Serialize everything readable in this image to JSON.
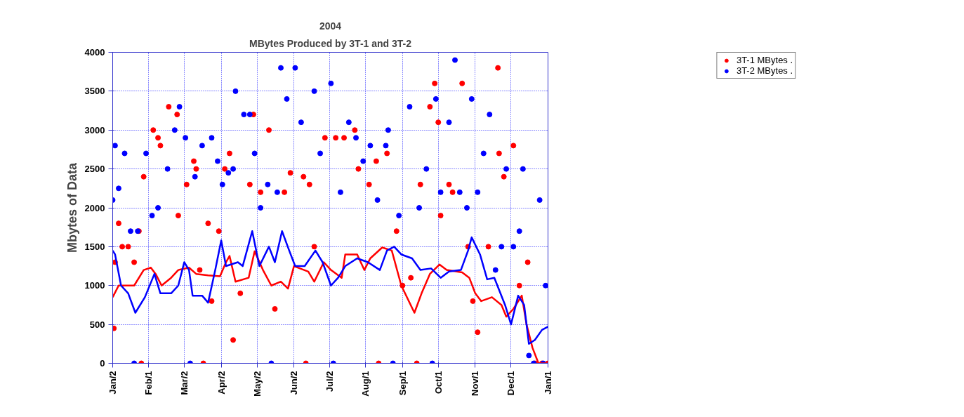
{
  "chart_data": {
    "type": "scatter",
    "title": "2004",
    "subtitle": "MBytes Produced by 3T-1 and 3T-2",
    "ylabel": "Mbytes of Data",
    "xlim": [
      "2004-01-02",
      "2005-01-01"
    ],
    "xticks": [
      {
        "value": "2004-01-02",
        "label": "Jan/2"
      },
      {
        "value": "2004-02-01",
        "label": "Feb/1"
      },
      {
        "value": "2004-03-02",
        "label": "Mar/2"
      },
      {
        "value": "2004-04-02",
        "label": "Apr/2"
      },
      {
        "value": "2004-05-02",
        "label": "May/2"
      },
      {
        "value": "2004-06-02",
        "label": "Jun/2"
      },
      {
        "value": "2004-07-02",
        "label": "Jul/2"
      },
      {
        "value": "2004-08-01",
        "label": "Aug/1"
      },
      {
        "value": "2004-09-01",
        "label": "Sep/1"
      },
      {
        "value": "2004-10-01",
        "label": "Oct/1"
      },
      {
        "value": "2004-11-01",
        "label": "Nov/1"
      },
      {
        "value": "2004-12-01",
        "label": "Dec/1"
      },
      {
        "value": "2005-01-01",
        "label": "Jan/1"
      }
    ],
    "ylim": [
      0,
      4000
    ],
    "yticks": [
      0,
      500,
      1000,
      1500,
      2000,
      2500,
      3000,
      3500,
      4000
    ],
    "grid": true,
    "legend": "top right",
    "marker": "circle",
    "series": [
      {
        "name": "3T-1 MBytes .",
        "color": "#ff0000",
        "x": [
          "2004-01-03",
          "2004-01-04",
          "2004-01-07",
          "2004-01-10",
          "2004-01-15",
          "2004-01-20",
          "2004-01-24",
          "2004-01-26",
          "2004-01-28",
          "2004-02-05",
          "2004-02-09",
          "2004-02-11",
          "2004-02-18",
          "2004-02-25",
          "2004-02-26",
          "2004-03-04",
          "2004-03-10",
          "2004-03-12",
          "2004-03-15",
          "2004-03-18",
          "2004-03-22",
          "2004-03-25",
          "2004-03-31",
          "2004-04-05",
          "2004-04-09",
          "2004-04-12",
          "2004-04-18",
          "2004-04-26",
          "2004-04-29",
          "2004-05-05",
          "2004-05-12",
          "2004-05-17",
          "2004-05-25",
          "2004-05-30",
          "2004-06-10",
          "2004-06-12",
          "2004-06-15",
          "2004-06-19",
          "2004-06-28",
          "2004-07-07",
          "2004-07-14",
          "2004-07-23",
          "2004-07-26",
          "2004-08-04",
          "2004-08-10",
          "2004-08-12",
          "2004-08-19",
          "2004-08-27",
          "2004-09-01",
          "2004-09-08",
          "2004-09-13",
          "2004-09-16",
          "2004-09-24",
          "2004-09-28",
          "2004-10-01",
          "2004-10-03",
          "2004-10-10",
          "2004-10-13",
          "2004-10-21",
          "2004-10-26",
          "2004-10-30",
          "2004-11-03",
          "2004-11-12",
          "2004-11-20",
          "2004-11-21",
          "2004-11-25",
          "2004-12-03",
          "2004-12-08",
          "2004-12-15",
          "2004-12-21",
          "2004-12-27",
          "2005-01-01"
        ],
        "values": [
          450,
          1300,
          1800,
          1500,
          1500,
          1300,
          1700,
          0,
          2400,
          3000,
          2900,
          2800,
          3300,
          3200,
          1900,
          2300,
          2600,
          2500,
          1200,
          0,
          1800,
          800,
          1700,
          2500,
          2700,
          300,
          900,
          2300,
          3200,
          2200,
          3000,
          700,
          2200,
          2450,
          2400,
          0,
          2300,
          1500,
          2900,
          2900,
          2900,
          3000,
          2500,
          2300,
          2600,
          0,
          2700,
          1700,
          1000,
          1100,
          0,
          2300,
          3300,
          3600,
          3100,
          1900,
          2300,
          2200,
          3600,
          1500,
          800,
          400,
          1500,
          3800,
          2700,
          2400,
          2800,
          1000,
          1300,
          0,
          0,
          0
        ]
      },
      {
        "name": "3T-2 MBytes .",
        "color": "#0000ff",
        "x": [
          "2004-01-02",
          "2004-01-04",
          "2004-01-07",
          "2004-01-12",
          "2004-01-17",
          "2004-01-20",
          "2004-01-23",
          "2004-01-30",
          "2004-02-04",
          "2004-02-09",
          "2004-02-17",
          "2004-02-23",
          "2004-02-27",
          "2004-03-03",
          "2004-03-07",
          "2004-03-11",
          "2004-03-17",
          "2004-03-25",
          "2004-03-30",
          "2004-04-03",
          "2004-04-08",
          "2004-04-12",
          "2004-04-14",
          "2004-04-21",
          "2004-04-26",
          "2004-04-30",
          "2004-05-05",
          "2004-05-11",
          "2004-05-14",
          "2004-05-19",
          "2004-05-22",
          "2004-05-27",
          "2004-06-03",
          "2004-06-08",
          "2004-06-19",
          "2004-06-24",
          "2004-07-03",
          "2004-07-05",
          "2004-07-11",
          "2004-07-18",
          "2004-07-24",
          "2004-07-30",
          "2004-08-05",
          "2004-08-11",
          "2004-08-18",
          "2004-08-20",
          "2004-08-24",
          "2004-08-29",
          "2004-09-07",
          "2004-09-15",
          "2004-09-21",
          "2004-09-26",
          "2004-09-29",
          "2004-10-03",
          "2004-10-10",
          "2004-10-15",
          "2004-10-19",
          "2004-10-25",
          "2004-10-29",
          "2004-11-03",
          "2004-11-08",
          "2004-11-13",
          "2004-11-18",
          "2004-11-23",
          "2004-11-27",
          "2004-12-03",
          "2004-12-08",
          "2004-12-11",
          "2004-12-16",
          "2004-12-20",
          "2004-12-25",
          "2004-12-28",
          "2004-12-30"
        ],
        "values": [
          2100,
          2800,
          2250,
          2700,
          1700,
          0,
          1700,
          2700,
          1900,
          2000,
          2500,
          3000,
          3300,
          2900,
          0,
          2400,
          2800,
          2900,
          2600,
          2300,
          2450,
          2500,
          3500,
          3200,
          3200,
          2700,
          2000,
          2300,
          0,
          2200,
          3800,
          3400,
          3800,
          3100,
          3500,
          2700,
          3600,
          0,
          2200,
          3100,
          2900,
          2600,
          2800,
          2100,
          2800,
          3000,
          0,
          1900,
          3300,
          2000,
          2500,
          0,
          3400,
          2200,
          3100,
          3900,
          2200,
          2000,
          3400,
          2200,
          2700,
          3200,
          1200,
          1500,
          2500,
          1500,
          1700,
          2500,
          100,
          0,
          2100,
          0,
          1000
        ]
      },
      {
        "type": "line",
        "color": "#ff0000",
        "line_style": "solid",
        "marker": "none",
        "x": [
          "2004-01-02",
          "2004-01-07",
          "2004-01-20",
          "2004-01-28",
          "2004-02-03",
          "2004-02-07",
          "2004-02-12",
          "2004-02-20",
          "2004-02-26",
          "2004-03-06",
          "2004-03-12",
          "2004-03-22",
          "2004-04-01",
          "2004-04-06",
          "2004-04-09",
          "2004-04-14",
          "2004-04-25",
          "2004-04-30",
          "2004-05-07",
          "2004-05-14",
          "2004-05-22",
          "2004-05-28",
          "2004-06-02",
          "2004-06-14",
          "2004-06-19",
          "2004-06-27",
          "2004-07-03",
          "2004-07-12",
          "2004-07-15",
          "2004-07-25",
          "2004-07-31",
          "2004-08-05",
          "2004-08-15",
          "2004-08-23",
          "2004-08-31",
          "2004-09-11",
          "2004-09-17",
          "2004-09-24",
          "2004-10-02",
          "2004-10-08",
          "2004-10-21",
          "2004-10-27",
          "2004-11-01",
          "2004-11-06",
          "2004-11-15",
          "2004-11-23",
          "2004-11-27",
          "2004-12-03",
          "2004-12-10",
          "2004-12-14",
          "2004-12-19",
          "2004-12-24",
          "2005-01-01"
        ],
        "values": [
          850,
          1000,
          1000,
          1200,
          1230,
          1150,
          1000,
          1100,
          1200,
          1230,
          1150,
          1130,
          1120,
          1300,
          1380,
          1050,
          1100,
          1440,
          1200,
          1000,
          1050,
          960,
          1250,
          1180,
          1050,
          1300,
          1200,
          1100,
          1400,
          1400,
          1200,
          1350,
          1490,
          1450,
          1000,
          650,
          900,
          1150,
          1270,
          1200,
          1170,
          1100,
          900,
          800,
          850,
          750,
          600,
          700,
          870,
          500,
          200,
          0,
          0
        ]
      },
      {
        "type": "line",
        "color": "#0000ff",
        "line_style": "solid",
        "marker": "none",
        "x": [
          "2004-01-02",
          "2004-01-04",
          "2004-01-09",
          "2004-01-15",
          "2004-01-21",
          "2004-01-29",
          "2004-02-06",
          "2004-02-11",
          "2004-02-20",
          "2004-02-26",
          "2004-03-02",
          "2004-03-06",
          "2004-03-09",
          "2004-03-17",
          "2004-03-22",
          "2004-03-28",
          "2004-04-02",
          "2004-04-06",
          "2004-04-16",
          "2004-04-20",
          "2004-04-28",
          "2004-05-04",
          "2004-05-12",
          "2004-05-17",
          "2004-05-23",
          "2004-05-29",
          "2004-06-03",
          "2004-06-11",
          "2004-06-20",
          "2004-06-26",
          "2004-07-03",
          "2004-07-09",
          "2004-07-15",
          "2004-07-25",
          "2004-08-03",
          "2004-08-13",
          "2004-08-19",
          "2004-08-25",
          "2004-08-31",
          "2004-09-09",
          "2004-09-16",
          "2004-09-25",
          "2004-10-03",
          "2004-10-10",
          "2004-10-20",
          "2004-10-26",
          "2004-10-29",
          "2004-11-05",
          "2004-11-11",
          "2004-11-17",
          "2004-11-26",
          "2004-12-01",
          "2004-12-07",
          "2004-12-12",
          "2004-12-16",
          "2004-12-21",
          "2004-12-27",
          "2005-01-01"
        ],
        "values": [
          1450,
          1400,
          1000,
          900,
          650,
          850,
          1150,
          900,
          900,
          1000,
          1300,
          1200,
          870,
          870,
          780,
          1200,
          1580,
          1250,
          1300,
          1250,
          1700,
          1250,
          1500,
          1300,
          1700,
          1450,
          1250,
          1250,
          1450,
          1300,
          1000,
          1100,
          1250,
          1350,
          1300,
          1200,
          1450,
          1500,
          1400,
          1350,
          1200,
          1220,
          1100,
          1180,
          1200,
          1450,
          1620,
          1400,
          1080,
          1100,
          750,
          500,
          870,
          750,
          250,
          300,
          430,
          470
        ]
      }
    ]
  }
}
